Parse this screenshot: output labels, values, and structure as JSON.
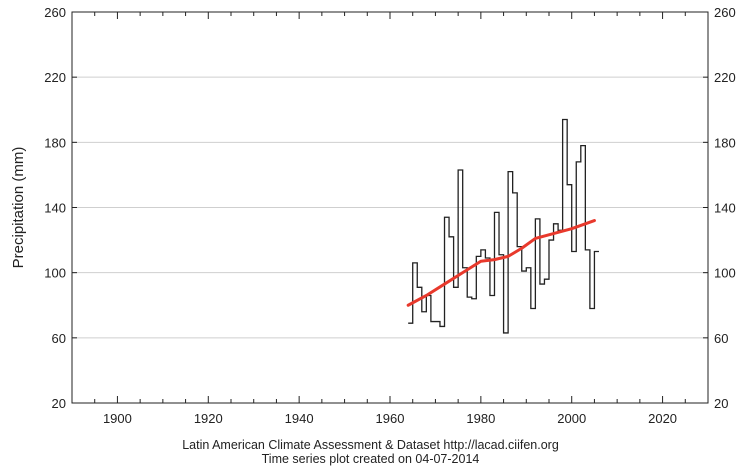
{
  "chart_data": {
    "type": "line",
    "ylabel": "Precipitation (mm)",
    "xlabel": "",
    "xlim": [
      1890,
      2030
    ],
    "ylim": [
      20,
      260
    ],
    "xticks": [
      1900,
      1920,
      1940,
      1960,
      1980,
      2000,
      2020
    ],
    "yticks": [
      20,
      60,
      100,
      140,
      180,
      220,
      260
    ],
    "grid": "horizontal",
    "right_axis": true,
    "series": [
      {
        "style": "step",
        "color": "#222222",
        "x": [
          1964,
          1965,
          1966,
          1967,
          1968,
          1969,
          1970,
          1971,
          1972,
          1973,
          1974,
          1975,
          1976,
          1977,
          1978,
          1979,
          1980,
          1981,
          1982,
          1983,
          1984,
          1985,
          1986,
          1987,
          1988,
          1989,
          1990,
          1991,
          1992,
          1993,
          1994,
          1995,
          1996,
          1997,
          1998,
          1999,
          2000,
          2001,
          2002,
          2003,
          2004,
          2005
        ],
        "values": [
          69,
          106,
          91,
          76,
          86,
          70,
          70,
          67,
          134,
          122,
          91,
          163,
          103,
          85,
          84,
          110,
          114,
          109,
          86,
          137,
          111,
          63,
          162,
          149,
          116,
          101,
          103,
          78,
          133,
          93,
          96,
          120,
          130,
          126,
          194,
          154,
          113,
          168,
          178,
          114,
          78,
          113
        ]
      },
      {
        "style": "trend",
        "color": "#e8392c",
        "x": [
          1964,
          1968,
          1972,
          1976,
          1980,
          1983,
          1986,
          1989,
          1992,
          1996,
          2000,
          2003,
          2005
        ],
        "values": [
          80,
          86,
          93,
          100,
          107,
          108,
          110,
          115,
          121,
          124,
          127,
          130,
          132
        ]
      }
    ]
  },
  "caption": {
    "line1": "Latin American Climate Assessment & Dataset  http://lacad.ciifen.org",
    "line2": "Time series plot created on 04-07-2014"
  }
}
